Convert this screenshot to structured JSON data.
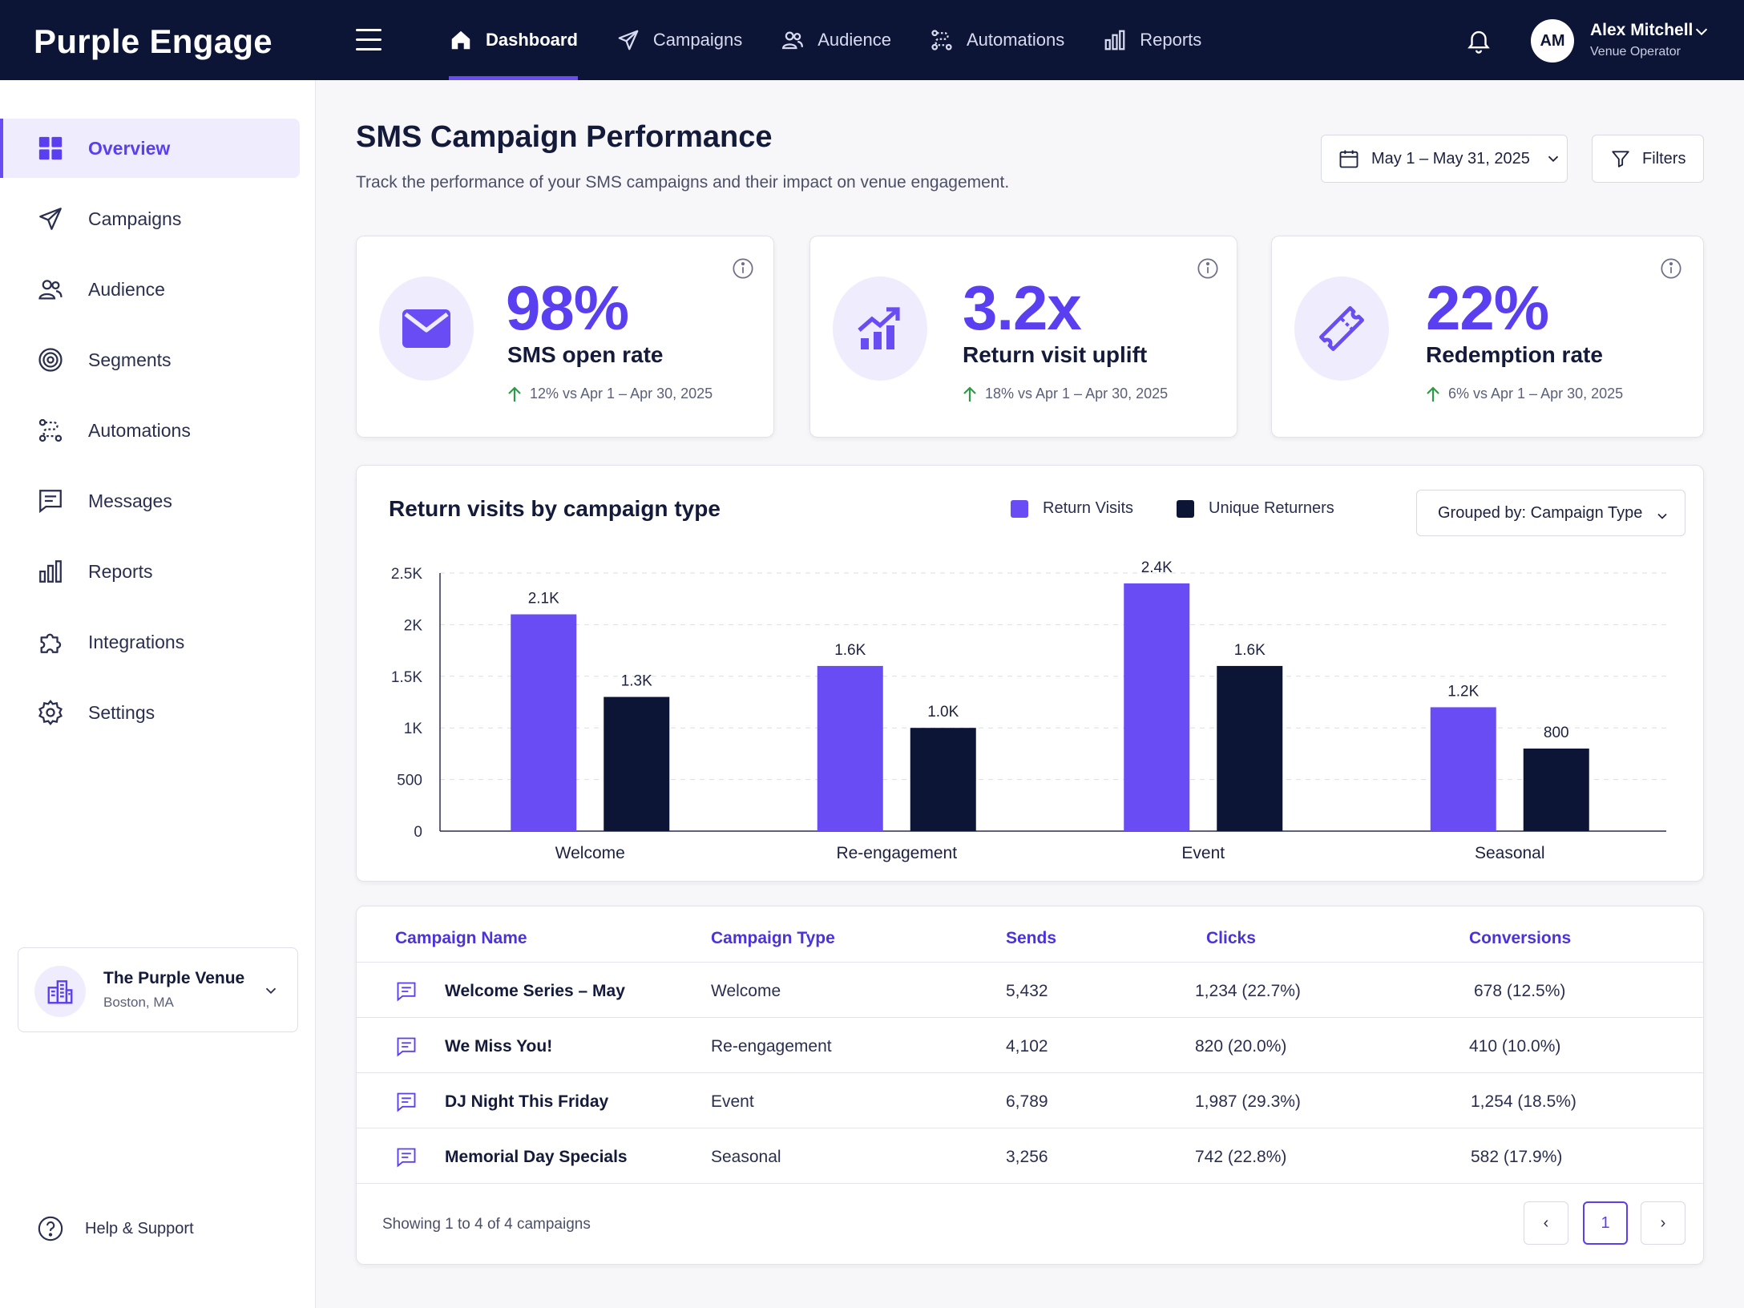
{
  "app": {
    "brand": "Purple Engage"
  },
  "topnav": {
    "items": [
      {
        "label": "Dashboard",
        "icon": "home-icon",
        "active": true
      },
      {
        "label": "Campaigns",
        "icon": "send-icon"
      },
      {
        "label": "Audience",
        "icon": "users-icon"
      },
      {
        "label": "Automations",
        "icon": "automation-icon"
      },
      {
        "label": "Reports",
        "icon": "bar-chart-icon"
      }
    ],
    "user": {
      "initials": "AM",
      "name": "Alex Mitchell",
      "role": "Venue Operator"
    }
  },
  "sidebar": {
    "items": [
      {
        "label": "Overview",
        "icon": "grid-icon",
        "active": true
      },
      {
        "label": "Campaigns",
        "icon": "send-icon"
      },
      {
        "label": "Audience",
        "icon": "users-icon"
      },
      {
        "label": "Segments",
        "icon": "target-icon"
      },
      {
        "label": "Automations",
        "icon": "automation-icon"
      },
      {
        "label": "Messages",
        "icon": "message-icon"
      },
      {
        "label": "Reports",
        "icon": "bar-chart-icon"
      },
      {
        "label": "Integrations",
        "icon": "puzzle-icon"
      },
      {
        "label": "Settings",
        "icon": "gear-icon"
      }
    ],
    "venue": {
      "name": "The Purple Venue",
      "location": "Boston, MA"
    },
    "help_label": "Help & Support"
  },
  "header": {
    "title": "SMS Campaign Performance",
    "subtitle": "Track the performance of your SMS campaigns and their impact on venue engagement.",
    "date_range": "May 1 – May 31, 2025",
    "filters_label": "Filters"
  },
  "kpis": [
    {
      "value": "98%",
      "label": "SMS open rate",
      "delta": "12% vs Apr 1 – Apr 30, 2025",
      "icon": "envelope-icon"
    },
    {
      "value": "3.2x",
      "label": "Return visit uplift",
      "delta": "18% vs Apr 1 – Apr 30, 2025",
      "icon": "trend-up-icon"
    },
    {
      "value": "22%",
      "label": "Redemption rate",
      "delta": "6% vs Apr 1 – Apr 30, 2025",
      "icon": "ticket-icon"
    }
  ],
  "chart_card": {
    "title": "Return visits by campaign type",
    "group_select": "Grouped by: Campaign Type"
  },
  "chart_data": {
    "type": "bar",
    "title": "Return visits by campaign type",
    "categories": [
      "Welcome",
      "Re-engagement",
      "Event",
      "Seasonal"
    ],
    "series": [
      {
        "name": "Return Visits",
        "values": [
          2100,
          1600,
          2400,
          1200
        ],
        "labels": [
          "2.1K",
          "1.6K",
          "2.4K",
          "1.2K"
        ],
        "color": "#6a4cf5"
      },
      {
        "name": "Unique Returners",
        "values": [
          1300,
          1000,
          1600,
          800
        ],
        "labels": [
          "1.3K",
          "1.0K",
          "1.6K",
          "800"
        ],
        "color": "#0d1537"
      }
    ],
    "ylim": [
      0,
      2500
    ],
    "yticks": [
      0,
      500,
      1000,
      1500,
      2000,
      2500
    ],
    "ytick_labels": [
      "0",
      "500",
      "1K",
      "1.5K",
      "2K",
      "2.5K"
    ],
    "grid": true,
    "legend": "top"
  },
  "table": {
    "columns": [
      "Campaign Name",
      "Campaign Type",
      "Sends",
      "Clicks",
      "Conversions"
    ],
    "rows": [
      {
        "name": "Welcome Series – May",
        "type": "Welcome",
        "sends": "5,432",
        "clicks": "1,234 (22.7%)",
        "conversions": "678 (12.5%)"
      },
      {
        "name": "We Miss You!",
        "type": "Re-engagement",
        "sends": "4,102",
        "clicks": "820 (20.0%)",
        "conversions": "410 (10.0%)"
      },
      {
        "name": "DJ Night This Friday",
        "type": "Event",
        "sends": "6,789",
        "clicks": "1,987 (29.3%)",
        "conversions": "1,254 (18.5%)"
      },
      {
        "name": "Memorial Day Specials",
        "type": "Seasonal",
        "sends": "3,256",
        "clicks": "742 (22.8%)",
        "conversions": "582 (17.9%)"
      }
    ],
    "footer": "Showing 1 to 4 of 4 campaigns",
    "pagination": {
      "prev": "‹",
      "current": "1",
      "next": "›"
    }
  }
}
